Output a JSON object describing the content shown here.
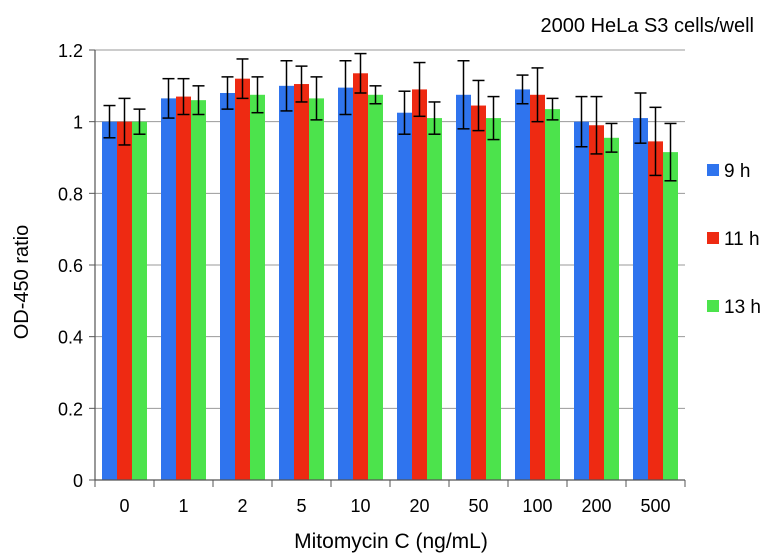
{
  "chart_data": {
    "type": "bar",
    "title": "2000 HeLa S3 cells/well",
    "xlabel": "Mitomycin C (ng/mL)",
    "ylabel": "OD-450 ratio",
    "ylim": [
      0,
      1.2
    ],
    "yticks": [
      "0",
      "0.2",
      "0.4",
      "0.6",
      "0.8",
      "1",
      "1.2"
    ],
    "categories": [
      "0",
      "1",
      "2",
      "5",
      "10",
      "20",
      "50",
      "100",
      "200",
      "500"
    ],
    "grid": true,
    "legend_position": "right",
    "series": [
      {
        "name": "9 h",
        "color": "#2f74ee",
        "values": [
          1.0,
          1.065,
          1.08,
          1.1,
          1.095,
          1.025,
          1.075,
          1.09,
          1.0,
          1.01
        ],
        "errors": [
          0.045,
          0.055,
          0.045,
          0.07,
          0.075,
          0.06,
          0.095,
          0.04,
          0.07,
          0.07
        ]
      },
      {
        "name": "11 h",
        "color": "#ee2a12",
        "values": [
          1.0,
          1.07,
          1.12,
          1.105,
          1.135,
          1.09,
          1.045,
          1.075,
          0.99,
          0.945
        ],
        "errors": [
          0.065,
          0.05,
          0.055,
          0.05,
          0.055,
          0.075,
          0.07,
          0.075,
          0.08,
          0.095
        ]
      },
      {
        "name": "13 h",
        "color": "#4ce34c",
        "values": [
          1.0,
          1.06,
          1.075,
          1.065,
          1.075,
          1.01,
          1.01,
          1.035,
          0.955,
          0.915
        ],
        "errors": [
          0.035,
          0.04,
          0.05,
          0.06,
          0.025,
          0.045,
          0.06,
          0.03,
          0.04,
          0.08
        ]
      }
    ]
  }
}
